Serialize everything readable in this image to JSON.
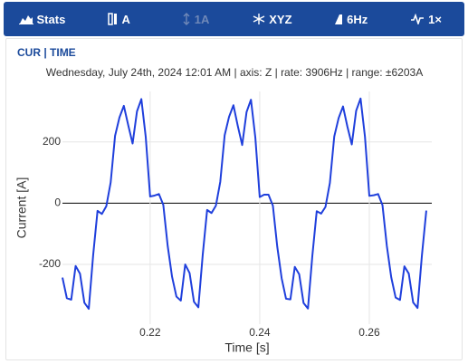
{
  "toolbar": {
    "buttons": [
      {
        "label": "Stats",
        "disabled": false
      },
      {
        "label": "A",
        "disabled": false
      },
      {
        "label": "1A",
        "disabled": true
      },
      {
        "label": "XYZ",
        "disabled": false
      },
      {
        "label": "6Hz",
        "disabled": false
      },
      {
        "label": "1×",
        "disabled": false
      }
    ]
  },
  "panel": {
    "title": "CUR | TIME"
  },
  "chart_data": {
    "type": "line",
    "subtitle": "Wednesday, July 24th, 2024 12:01 AM | axis: Z | rate: 3906Hz | range: ±6203A",
    "xlabel": "Time [s]",
    "ylabel": "Current [A]",
    "x": [
      0.204,
      0.2048,
      0.2056,
      0.2064,
      0.2072,
      0.208,
      0.2088,
      0.2096,
      0.2104,
      0.2112,
      0.212,
      0.2128,
      0.2136,
      0.2144,
      0.2152,
      0.216,
      0.2168,
      0.2176,
      0.2184,
      0.2192,
      0.22,
      0.2208,
      0.2216,
      0.2224,
      0.2232,
      0.224,
      0.2248,
      0.2256,
      0.2264,
      0.2272,
      0.228,
      0.2288,
      0.2296,
      0.2304,
      0.2312,
      0.232,
      0.2328,
      0.2336,
      0.2344,
      0.2352,
      0.236,
      0.2368,
      0.2376,
      0.2384,
      0.2392,
      0.24,
      0.2408,
      0.2416,
      0.2424,
      0.2432,
      0.244,
      0.2448,
      0.2456,
      0.2464,
      0.2472,
      0.248,
      0.2488,
      0.2496,
      0.2504,
      0.2512,
      0.252,
      0.2528,
      0.2536,
      0.2544,
      0.2552,
      0.256,
      0.2568,
      0.2576,
      0.2584,
      0.2592,
      0.26,
      0.2608,
      0.2616,
      0.2624,
      0.2632,
      0.264,
      0.2648,
      0.2656,
      0.2664,
      0.2672,
      0.268,
      0.2688,
      0.2696,
      0.2704
    ],
    "series": [
      {
        "name": "Z",
        "color": "#1f3fdc",
        "values": [
          -243,
          -310,
          -315,
          -205,
          -230,
          -325,
          -345,
          -170,
          -25,
          -35,
          -10,
          68,
          220,
          280,
          318,
          255,
          195,
          300,
          340,
          216,
          22,
          25,
          30,
          -5,
          -139,
          -240,
          -305,
          -318,
          -200,
          -228,
          -322,
          -340,
          -168,
          -22,
          -32,
          -8,
          70,
          222,
          282,
          320,
          252,
          190,
          298,
          338,
          214,
          20,
          28,
          28,
          -8,
          -142,
          -245,
          -312,
          -314,
          -208,
          -232,
          -326,
          -344,
          -172,
          -26,
          -34,
          -12,
          66,
          218,
          278,
          316,
          250,
          192,
          302,
          342,
          218,
          24,
          26,
          30,
          -6,
          -140,
          -242,
          -308,
          -316,
          -206,
          -230,
          -324,
          -342,
          -170,
          -24
        ]
      }
    ],
    "xlim": [
      0.204,
      0.2714
    ],
    "ylim": [
      -395,
      365
    ],
    "xticks": [
      0.22,
      0.24,
      0.26
    ],
    "yticks": [
      -200,
      0,
      200
    ],
    "grid": true
  }
}
